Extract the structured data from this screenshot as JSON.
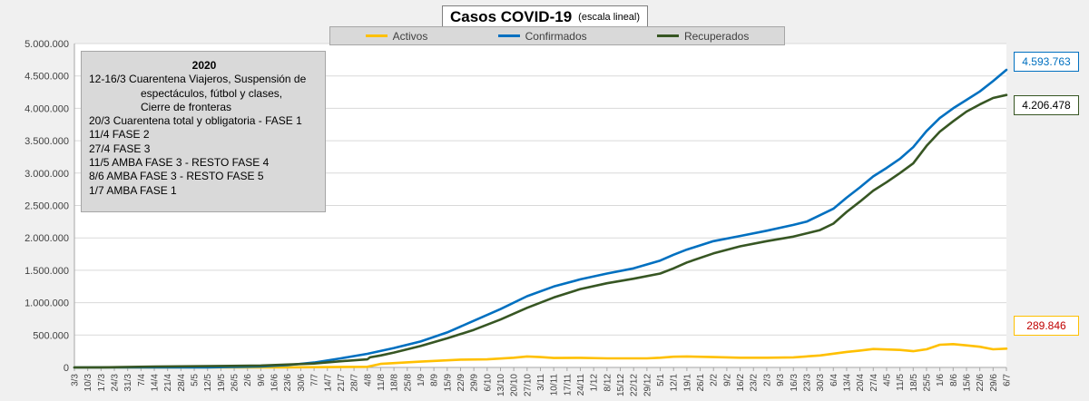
{
  "title": "Casos  COVID-19",
  "subtitle": "(escala lineal)",
  "legend": [
    "Activos",
    "Confirmados",
    "Recuperados"
  ],
  "colors": {
    "activos": "#ffc000",
    "confirmados": "#0070c0",
    "recuperados": "#375623"
  },
  "annotation": {
    "year": "2020",
    "lines": [
      "12-16/3  Cuarentena Viajeros, Suspensión de",
      "espectáculos, fútbol y clases,",
      "Cierre de fronteras",
      "20/3 Cuarentena total y obligatoria - FASE 1",
      "11/4 FASE 2",
      "27/4 FASE 3",
      "11/5 AMBA FASE 3 - RESTO FASE 4",
      "8/6 AMBA FASE 3  - RESTO FASE 5",
      "1/7 AMBA FASE 1"
    ]
  },
  "callouts": {
    "confirmados": "4.593.763",
    "recuperados": "4.206.478",
    "activos": "289.846"
  },
  "chart_data": {
    "type": "line",
    "ylim": [
      0,
      5000000
    ],
    "ytick_labels": [
      "0",
      "500.000",
      "1.000.000",
      "1.500.000",
      "2.000.000",
      "2.500.000",
      "3.000.000",
      "3.500.000",
      "4.000.000",
      "4.500.000",
      "5.000.000"
    ],
    "x_tick_labels": [
      "3/3",
      "10/3",
      "17/3",
      "24/3",
      "31/3",
      "7/4",
      "14/4",
      "21/4",
      "28/4",
      "5/5",
      "12/5",
      "19/5",
      "26/5",
      "2/6",
      "9/6",
      "16/6",
      "23/6",
      "30/6",
      "7/7",
      "14/7",
      "21/7",
      "28/7",
      "4/8",
      "11/8",
      "18/8",
      "25/8",
      "1/9",
      "8/9",
      "15/9",
      "22/9",
      "29/9",
      "6/10",
      "13/10",
      "20/10",
      "27/10",
      "3/11",
      "10/11",
      "17/11",
      "24/11",
      "1/12",
      "8/12",
      "15/12",
      "22/12",
      "29/12",
      "5/1",
      "12/1",
      "19/1",
      "26/1",
      "2/2",
      "9/2",
      "16/2",
      "23/2",
      "2/3",
      "9/3",
      "16/3",
      "23/3",
      "30/3",
      "6/4",
      "13/4",
      "20/4",
      "27/4",
      "4/5",
      "11/5",
      "18/5",
      "25/5",
      "1/6",
      "8/6",
      "15/6",
      "22/6",
      "29/6",
      "6/7"
    ],
    "x_index_range": [
      0,
      70
    ],
    "grid": true,
    "legend_position": "top",
    "series": [
      {
        "name": "Activos",
        "points": [
          [
            0,
            0
          ],
          [
            16,
            2000
          ],
          [
            22,
            10000
          ],
          [
            23,
            55000
          ],
          [
            26,
            90000
          ],
          [
            29,
            120000
          ],
          [
            31,
            125000
          ],
          [
            33,
            150000
          ],
          [
            34,
            170000
          ],
          [
            35,
            160000
          ],
          [
            36,
            145000
          ],
          [
            38,
            148000
          ],
          [
            40,
            140000
          ],
          [
            42,
            140000
          ],
          [
            43,
            140000
          ],
          [
            44,
            150000
          ],
          [
            45,
            165000
          ],
          [
            46,
            170000
          ],
          [
            48,
            160000
          ],
          [
            50,
            150000
          ],
          [
            52,
            150000
          ],
          [
            54,
            155000
          ],
          [
            56,
            185000
          ],
          [
            58,
            240000
          ],
          [
            59,
            260000
          ],
          [
            60,
            285000
          ],
          [
            62,
            270000
          ],
          [
            63,
            250000
          ],
          [
            64,
            280000
          ],
          [
            65,
            350000
          ],
          [
            66,
            360000
          ],
          [
            67,
            340000
          ],
          [
            68,
            320000
          ],
          [
            69,
            280000
          ],
          [
            70,
            289846
          ]
        ]
      },
      {
        "name": "Confirmados",
        "points": [
          [
            0,
            0
          ],
          [
            10,
            1500
          ],
          [
            12,
            8000
          ],
          [
            14,
            15000
          ],
          [
            16,
            35000
          ],
          [
            18,
            75000
          ],
          [
            20,
            140000
          ],
          [
            22,
            210000
          ],
          [
            24,
            300000
          ],
          [
            26,
            400000
          ],
          [
            28,
            540000
          ],
          [
            30,
            720000
          ],
          [
            32,
            900000
          ],
          [
            34,
            1100000
          ],
          [
            36,
            1250000
          ],
          [
            38,
            1360000
          ],
          [
            40,
            1450000
          ],
          [
            42,
            1530000
          ],
          [
            44,
            1650000
          ],
          [
            45,
            1740000
          ],
          [
            46,
            1820000
          ],
          [
            48,
            1950000
          ],
          [
            50,
            2030000
          ],
          [
            52,
            2110000
          ],
          [
            54,
            2200000
          ],
          [
            55,
            2250000
          ],
          [
            56,
            2350000
          ],
          [
            57,
            2450000
          ],
          [
            58,
            2620000
          ],
          [
            59,
            2780000
          ],
          [
            60,
            2950000
          ],
          [
            61,
            3080000
          ],
          [
            62,
            3220000
          ],
          [
            63,
            3400000
          ],
          [
            64,
            3650000
          ],
          [
            65,
            3850000
          ],
          [
            66,
            4000000
          ],
          [
            67,
            4130000
          ],
          [
            68,
            4260000
          ],
          [
            69,
            4420000
          ],
          [
            70,
            4593763
          ]
        ]
      },
      {
        "name": "Recuperados",
        "points": [
          [
            0,
            0
          ],
          [
            2,
            2000
          ],
          [
            6,
            12000
          ],
          [
            10,
            20000
          ],
          [
            14,
            30000
          ],
          [
            16,
            45000
          ],
          [
            18,
            60000
          ],
          [
            20,
            95000
          ],
          [
            22,
            125000
          ],
          [
            22.2,
            155000
          ],
          [
            23,
            185000
          ],
          [
            24,
            230000
          ],
          [
            26,
            330000
          ],
          [
            28,
            450000
          ],
          [
            30,
            580000
          ],
          [
            32,
            740000
          ],
          [
            34,
            920000
          ],
          [
            36,
            1080000
          ],
          [
            38,
            1210000
          ],
          [
            40,
            1300000
          ],
          [
            42,
            1370000
          ],
          [
            44,
            1450000
          ],
          [
            45,
            1530000
          ],
          [
            46,
            1620000
          ],
          [
            48,
            1760000
          ],
          [
            50,
            1870000
          ],
          [
            52,
            1950000
          ],
          [
            54,
            2020000
          ],
          [
            56,
            2120000
          ],
          [
            57,
            2220000
          ],
          [
            58,
            2400000
          ],
          [
            59,
            2560000
          ],
          [
            60,
            2730000
          ],
          [
            61,
            2860000
          ],
          [
            62,
            3000000
          ],
          [
            63,
            3150000
          ],
          [
            64,
            3420000
          ],
          [
            65,
            3640000
          ],
          [
            66,
            3800000
          ],
          [
            67,
            3950000
          ],
          [
            68,
            4060000
          ],
          [
            69,
            4160000
          ],
          [
            70,
            4206478
          ]
        ]
      }
    ]
  }
}
